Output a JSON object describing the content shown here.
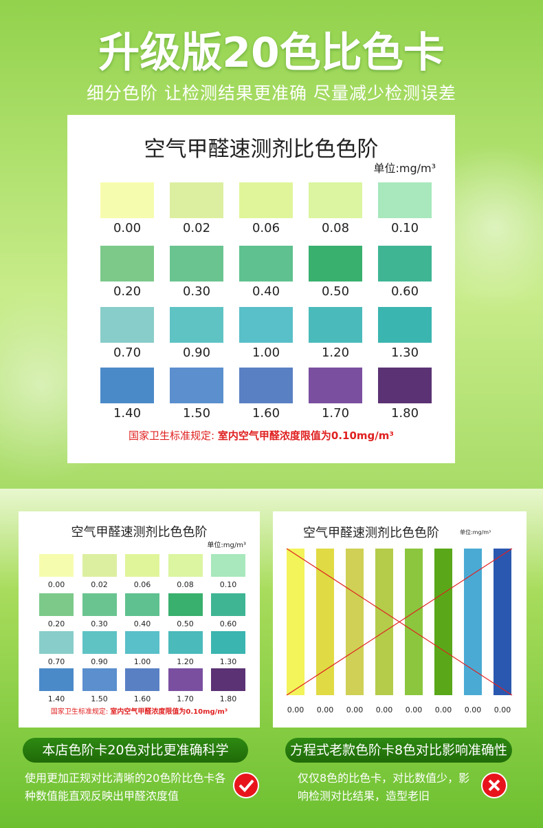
{
  "header": {
    "title": "升级版20色比色卡",
    "subtitle": "细分色阶  让检测结果更准确 尽量减少检测误差"
  },
  "card": {
    "title": "空气甲醛速测剂比色色阶",
    "unit": "单位:mg/m³",
    "swatches": [
      {
        "label": "0.00",
        "color": "#f6fcae"
      },
      {
        "label": "0.02",
        "color": "#dcefa0"
      },
      {
        "label": "0.06",
        "color": "#e0f59a"
      },
      {
        "label": "0.08",
        "color": "#dbf5a0"
      },
      {
        "label": "0.10",
        "color": "#a8e8bc"
      },
      {
        "label": "0.20",
        "color": "#7cc98a"
      },
      {
        "label": "0.30",
        "color": "#6ac490"
      },
      {
        "label": "0.40",
        "color": "#5ec18f"
      },
      {
        "label": "0.50",
        "color": "#39b06e"
      },
      {
        "label": "0.60",
        "color": "#3fb594"
      },
      {
        "label": "0.70",
        "color": "#88cdc9"
      },
      {
        "label": "0.90",
        "color": "#5fc3c4"
      },
      {
        "label": "1.00",
        "color": "#59bfc8"
      },
      {
        "label": "1.20",
        "color": "#4bbabb"
      },
      {
        "label": "1.30",
        "color": "#3bb5b0"
      },
      {
        "label": "1.40",
        "color": "#4b8ac8"
      },
      {
        "label": "1.50",
        "color": "#5b8fce"
      },
      {
        "label": "1.60",
        "color": "#5a80c4"
      },
      {
        "label": "1.70",
        "color": "#7a4fa0"
      },
      {
        "label": "1.80",
        "color": "#5b3273"
      }
    ],
    "note": "国家卫生标准规定: ",
    "note_highlight": "室内空气甲醛浓度限值为0.10mg/m³"
  },
  "old_card": {
    "title": "空气甲醛速测剂比色色阶",
    "unit": "单位:mg/m³",
    "bars": [
      {
        "label": "0.00",
        "color": "#f3f35a"
      },
      {
        "label": "0.00",
        "color": "#e0da44"
      },
      {
        "label": "0.00",
        "color": "#cfd055"
      },
      {
        "label": "0.00",
        "color": "#b4cc4a"
      },
      {
        "label": "0.00",
        "color": "#8cc63e"
      },
      {
        "label": "0.00",
        "color": "#5aa81a"
      },
      {
        "label": "0.00",
        "color": "#4aaad4"
      },
      {
        "label": "0.00",
        "color": "#2a58b0"
      }
    ]
  },
  "left": {
    "badge": "本店色阶卡20色对比更准确科学",
    "text": "使用更加正规对比清晰的20色阶比色卡各种数值能直观反映出甲醛浓度值"
  },
  "right": {
    "badge": "方程式老款色阶卡8色对比影响准确性",
    "text": "仅仅8色的比色卡，对比数值少，影响检测对比结果，造型老旧"
  }
}
